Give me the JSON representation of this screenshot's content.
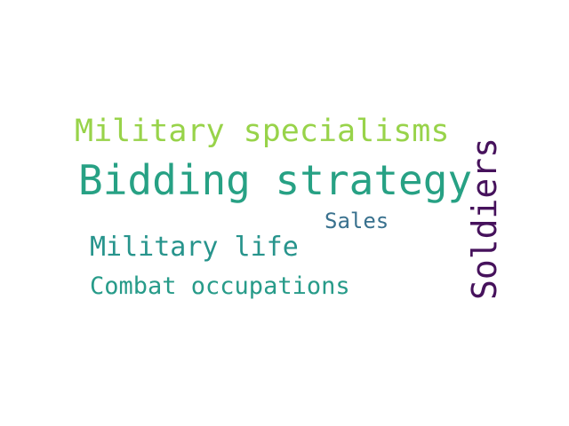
{
  "words": [
    {
      "id": "w-military-specialisms",
      "text": "Military specialisms",
      "color": "#98d34a"
    },
    {
      "id": "w-bidding-strategy",
      "text": "Bidding strategy",
      "color": "#27a184"
    },
    {
      "id": "w-sales",
      "text": "Sales",
      "color": "#39718e"
    },
    {
      "id": "w-military-life",
      "text": "Military life",
      "color": "#27948c"
    },
    {
      "id": "w-combat-occupations",
      "text": "Combat occupations",
      "color": "#279b89"
    },
    {
      "id": "w-soldiers",
      "text": "Soldiers",
      "color": "#46125c"
    }
  ]
}
